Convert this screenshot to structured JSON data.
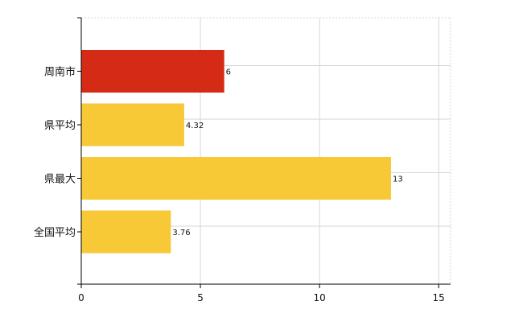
{
  "chart_data": {
    "type": "bar",
    "orientation": "horizontal",
    "categories": [
      "周南市",
      "県平均",
      "県最大",
      "全国平均"
    ],
    "values": [
      6,
      4.32,
      13,
      3.76
    ],
    "data_labels": [
      "6",
      "4.32",
      "13",
      "3.76"
    ],
    "colors": [
      "#d42a16",
      "#f7c936",
      "#f7c936",
      "#f7c936"
    ],
    "xlim": [
      0,
      15.5
    ],
    "xticks": [
      0,
      5,
      10,
      15
    ],
    "grid": true,
    "legend": "none",
    "title": "",
    "xlabel": "",
    "ylabel": ""
  }
}
